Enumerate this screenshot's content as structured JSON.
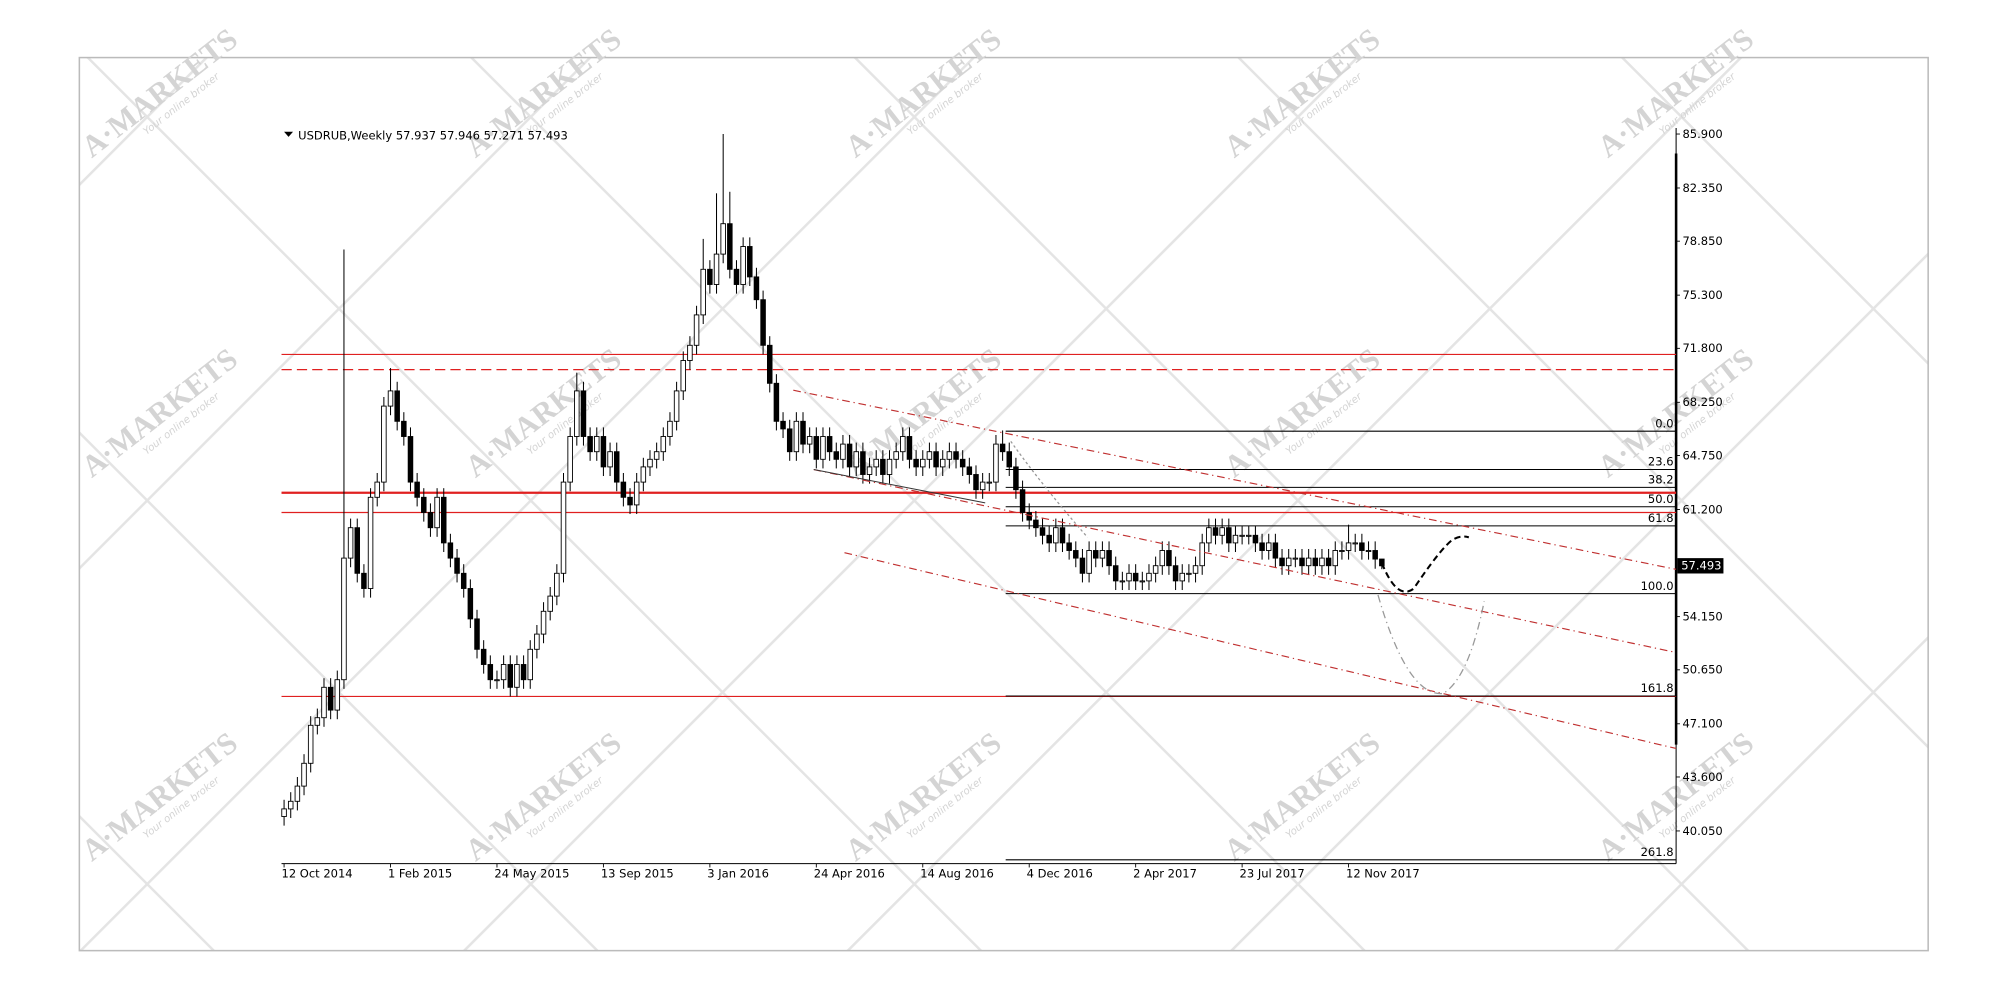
{
  "chart_data": {
    "type": "candlestick",
    "title": "USDRUB,Weekly",
    "categories": [
      "12 Oct 2014",
      null,
      null,
      null,
      null,
      null,
      null,
      null,
      null,
      null,
      null,
      null,
      null,
      null,
      null,
      null,
      "1 Feb 2015",
      null,
      null,
      null,
      null,
      null,
      null,
      null,
      null,
      null,
      null,
      null,
      null,
      null,
      null,
      null,
      "24 May 2015",
      null,
      null,
      null,
      null,
      null,
      null,
      null,
      null,
      null,
      null,
      null,
      null,
      null,
      null,
      null,
      "13 Sep 2015",
      null,
      null,
      null,
      null,
      null,
      null,
      null,
      null,
      null,
      null,
      null,
      null,
      null,
      null,
      null,
      "3 Jan 2016",
      null,
      null,
      null,
      null,
      null,
      null,
      null,
      null,
      null,
      null,
      null,
      null,
      null,
      null,
      null,
      "24 Apr 2016",
      null,
      null,
      null,
      null,
      null,
      null,
      null,
      null,
      null,
      null,
      null,
      null,
      null,
      null,
      null,
      "14 Aug 2016",
      null,
      null,
      null,
      null,
      null,
      null,
      null,
      null,
      null,
      null,
      null,
      null,
      null,
      null,
      null,
      "4 Dec 2016",
      null,
      null,
      null,
      null,
      null,
      null,
      null,
      null,
      null,
      null,
      null,
      null,
      null,
      null,
      null,
      "2 Apr 2017",
      null,
      null,
      null,
      null,
      null,
      null,
      null,
      null,
      null,
      null,
      null,
      null,
      null,
      null,
      null,
      "23 Jul 2017",
      null,
      null,
      null,
      null,
      null,
      null,
      null,
      null,
      null,
      null,
      null,
      null,
      null,
      null,
      null,
      "12 Nov 2017",
      null,
      null,
      null,
      null,
      null
    ],
    "open": [
      41,
      41.5,
      42,
      43,
      44.5,
      47,
      47.5,
      49.5,
      48,
      50,
      58,
      60,
      57,
      56,
      62,
      63,
      68,
      69,
      67,
      66,
      63,
      62,
      61,
      60,
      62,
      59,
      58,
      57,
      56,
      54,
      52,
      51,
      50,
      50,
      51,
      49.5,
      51,
      50,
      52,
      53,
      54.5,
      55.5,
      57,
      63,
      66,
      69,
      66,
      65,
      66,
      64,
      65,
      63,
      62,
      61.5,
      63,
      64,
      64.5,
      65,
      66,
      67,
      69,
      71,
      72,
      74,
      77,
      76,
      78,
      80,
      77,
      76,
      78.5,
      76.5,
      75,
      72,
      69.5,
      67,
      66.5,
      65,
      67,
      65.5,
      66,
      64.5,
      66,
      65,
      64.5,
      65.5,
      64,
      65,
      63.5,
      64,
      64.5,
      63.5,
      64.5,
      65,
      66,
      64.5,
      64,
      64.5,
      65,
      64,
      64.5,
      65,
      64.5,
      64,
      63.5,
      62.5,
      63,
      63,
      65.5,
      65,
      64,
      62.5,
      61,
      60.5,
      60,
      59.5,
      59,
      60,
      59,
      58.5,
      58,
      57,
      58.5,
      58,
      58.5,
      57.5,
      56.5,
      56.5,
      57,
      56.5,
      56.5,
      57,
      57.5,
      58.5,
      57.5,
      56.5,
      57,
      57,
      57.5,
      59,
      60,
      59.5,
      60,
      59,
      59.5,
      59.5,
      59.5,
      59,
      58.5,
      59,
      58,
      57.5,
      58,
      58,
      57.5,
      58,
      57.5,
      58,
      57.5,
      58.5,
      58.5,
      59,
      59,
      58.5,
      58.5,
      57.937
    ],
    "high": [
      42.1,
      42.6,
      43.6,
      45.1,
      47.6,
      48.1,
      50.1,
      50.1,
      50.6,
      78.3,
      60.6,
      60.6,
      57.6,
      62.6,
      63.6,
      68.6,
      70.5,
      69.6,
      67.6,
      66.6,
      63.6,
      62.6,
      61.6,
      62.6,
      62.6,
      59.6,
      58.6,
      57.6,
      56.6,
      54.6,
      52.6,
      51.6,
      50.6,
      51.6,
      51.6,
      51.6,
      51.6,
      52.6,
      53.6,
      55.1,
      56.1,
      57.6,
      63.6,
      66.6,
      70.2,
      69.6,
      66.6,
      66.6,
      66.6,
      65.6,
      65.6,
      63.6,
      62.6,
      63.6,
      64.6,
      65.1,
      65.6,
      66.6,
      67.6,
      69.6,
      71.6,
      72.6,
      74.6,
      79,
      77.6,
      82,
      85.9,
      82.1,
      77.6,
      79.1,
      79.1,
      77.1,
      75.6,
      72.6,
      70.1,
      67.6,
      67.1,
      67.6,
      67.6,
      66.6,
      66.6,
      66.6,
      66.6,
      65.6,
      66.1,
      66.1,
      65.6,
      65.6,
      64.6,
      65.1,
      65.1,
      65.1,
      65.6,
      66.6,
      66.6,
      65.1,
      65.1,
      65.6,
      65.6,
      65.1,
      65.6,
      65.6,
      65.1,
      64.6,
      64.1,
      63.6,
      63.6,
      66.1,
      66.4,
      65.6,
      64.6,
      63.1,
      61.6,
      61.1,
      60.6,
      60.1,
      60.6,
      60.6,
      59.6,
      59.1,
      58.6,
      59.1,
      59.1,
      59.1,
      59.1,
      58.1,
      57.1,
      57.6,
      57.6,
      57.1,
      57.6,
      58.1,
      59.1,
      59.1,
      58.1,
      57.6,
      57.6,
      58.1,
      59.6,
      60.6,
      60.6,
      60.6,
      60.6,
      60.1,
      60.1,
      60.1,
      60.1,
      59.6,
      59.6,
      59.6,
      58.6,
      58.6,
      58.6,
      58.6,
      58.6,
      58.6,
      58.6,
      58.6,
      59.1,
      59.1,
      60.2,
      59.6,
      59.6,
      59.1,
      59.1,
      57.946
    ],
    "low": [
      40.4,
      40.9,
      41.4,
      42.4,
      43.9,
      46.4,
      46.9,
      47.4,
      47.4,
      49.4,
      57.4,
      56.4,
      55.4,
      55.4,
      61.4,
      62.4,
      67.4,
      66.4,
      65.4,
      62.4,
      61.4,
      60.4,
      59.4,
      59.4,
      58.4,
      57.4,
      56.4,
      55.4,
      53.4,
      51.4,
      50.4,
      49.4,
      49.4,
      49.4,
      48.9,
      48.9,
      49.4,
      49.4,
      51.4,
      52.4,
      53.9,
      54.9,
      56.4,
      62.4,
      65.4,
      65.4,
      64.4,
      64.4,
      63.4,
      63.4,
      62.4,
      61.4,
      60.9,
      60.9,
      62.4,
      63.4,
      63.9,
      64.4,
      65.4,
      66.4,
      68.4,
      70.4,
      71.4,
      73.4,
      75.4,
      75.4,
      77.4,
      76.4,
      75.4,
      75.4,
      75.9,
      74.4,
      71.4,
      68.9,
      66.4,
      65.9,
      64.4,
      64.4,
      64.9,
      64.9,
      63.9,
      63.9,
      64.4,
      63.9,
      63.9,
      63.4,
      63.4,
      62.9,
      62.9,
      63.4,
      62.9,
      62.9,
      63.9,
      64.4,
      63.9,
      63.4,
      63.4,
      63.9,
      63.4,
      63.4,
      63.9,
      63.9,
      63.4,
      62.9,
      61.9,
      61.9,
      62.4,
      62.4,
      64.4,
      63.4,
      61.9,
      60.4,
      59.9,
      59.4,
      58.9,
      58.4,
      58.4,
      58.4,
      57.9,
      57.4,
      56.4,
      56.4,
      57.4,
      57.4,
      56.9,
      55.9,
      55.9,
      55.9,
      55.9,
      55.9,
      55.9,
      56.4,
      56.9,
      56.9,
      55.9,
      55.9,
      56.4,
      56.4,
      56.9,
      58.4,
      58.9,
      58.9,
      58.4,
      58.4,
      58.9,
      58.9,
      58.4,
      57.9,
      57.9,
      57.4,
      56.9,
      56.9,
      57.4,
      56.9,
      56.9,
      56.9,
      56.9,
      56.9,
      56.9,
      57.9,
      57.9,
      58.4,
      57.9,
      57.9,
      57.3,
      57.271
    ],
    "close": [
      41.5,
      42,
      43,
      44.5,
      47,
      47.5,
      49.5,
      48,
      50,
      58,
      60,
      57,
      56,
      62,
      63,
      68,
      69,
      67,
      66,
      63,
      62,
      61,
      60,
      62,
      59,
      58,
      57,
      56,
      54,
      52,
      51,
      50,
      50,
      51,
      49.5,
      51,
      50,
      52,
      53,
      54.5,
      55.5,
      57,
      63,
      66,
      69,
      66,
      65,
      66,
      64,
      65,
      63,
      62,
      61.5,
      63,
      64,
      64.5,
      65,
      66,
      67,
      69,
      71,
      72,
      74,
      77,
      76,
      78,
      80,
      77,
      76,
      78.5,
      76.5,
      75,
      72,
      69.5,
      67,
      66.5,
      65,
      67,
      65.5,
      66,
      64.5,
      66,
      65,
      64.5,
      65.5,
      64,
      65,
      63.5,
      64,
      64.5,
      63.5,
      64.5,
      65,
      66,
      64.5,
      64,
      64.5,
      65,
      64,
      64.5,
      65,
      64.5,
      64,
      63.5,
      62.5,
      63,
      63,
      65.5,
      65,
      64,
      62.5,
      61,
      60.5,
      60,
      59.5,
      59,
      60,
      59,
      58.5,
      58,
      57,
      58.5,
      58,
      58.5,
      57.5,
      56.5,
      56.5,
      57,
      56.5,
      56.5,
      57,
      57.5,
      58.5,
      57.5,
      56.5,
      57,
      57,
      57.5,
      59,
      60,
      59.5,
      60,
      59,
      59.5,
      59.5,
      59.5,
      59,
      58.5,
      59,
      58,
      57.5,
      58,
      58,
      57.5,
      58,
      57.5,
      58,
      57.5,
      58.5,
      58.5,
      59,
      59,
      58.5,
      58.5,
      57.937,
      57.493
    ],
    "up_color": "#ffffff",
    "down_color": "#000000",
    "ylim": [
      37.9,
      86.3
    ],
    "yticks": [
      {
        "value": 85.9,
        "label": "85.900"
      },
      {
        "value": 82.35,
        "label": "82.350"
      },
      {
        "value": 78.85,
        "label": "78.850"
      },
      {
        "value": 75.3,
        "label": "75.300"
      },
      {
        "value": 71.8,
        "label": "71.800"
      },
      {
        "value": 68.25,
        "label": "68.250"
      },
      {
        "value": 64.75,
        "label": "64.750"
      },
      {
        "value": 61.2,
        "label": "61.200"
      },
      {
        "value": 54.15,
        "label": "54.150"
      },
      {
        "value": 50.65,
        "label": "50.650"
      },
      {
        "value": 47.1,
        "label": "47.100"
      },
      {
        "value": 43.6,
        "label": "43.600"
      },
      {
        "value": 40.05,
        "label": "40.050"
      }
    ],
    "hline_color": "#e02020",
    "hlines": [
      {
        "price": 71.4,
        "style": "solid"
      },
      {
        "price": 70.4,
        "style": "dashed"
      },
      {
        "price": 62.3,
        "style": "thick"
      },
      {
        "price": 61.0,
        "style": "solid"
      },
      {
        "price": 48.9,
        "style": "solid"
      }
    ],
    "fib_levels": [
      {
        "label": "0.0",
        "price": 66.35
      },
      {
        "label": "23.6",
        "price": 63.83
      },
      {
        "label": "38.2",
        "price": 62.65
      },
      {
        "label": "50.0",
        "price": 61.38
      },
      {
        "label": "61.8",
        "price": 60.12
      },
      {
        "label": "100.0",
        "price": 55.66
      },
      {
        "label": "161.8",
        "price": 48.93
      },
      {
        "label": "261.8",
        "price": 38.15
      }
    ],
    "watermark": {
      "brand": "A·MARKETS",
      "tagline": "Your online broker"
    }
  }
}
